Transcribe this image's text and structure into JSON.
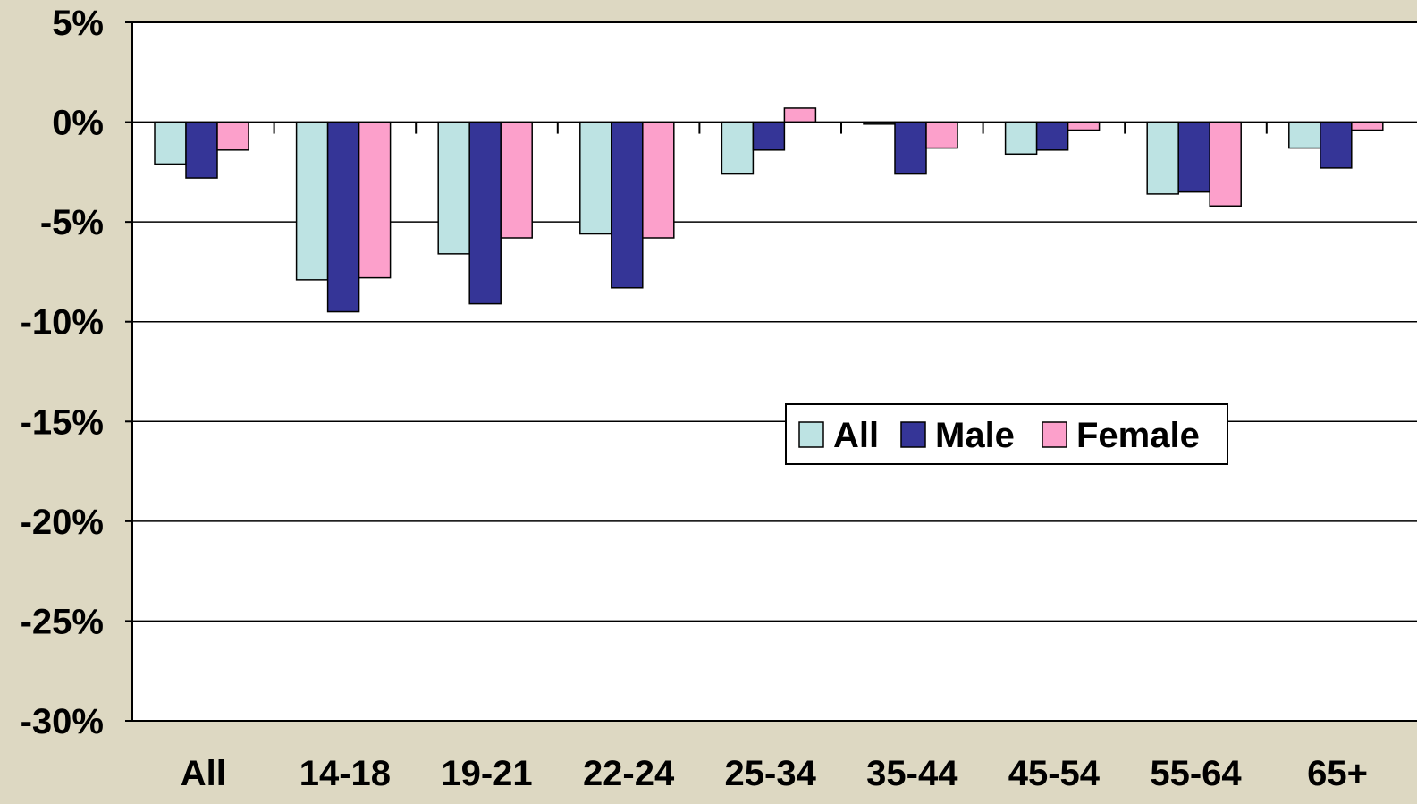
{
  "chart_data": {
    "type": "bar",
    "title": "",
    "xlabel": "",
    "ylabel": "",
    "categories": [
      "All",
      "14-18",
      "19-21",
      "22-24",
      "25-34",
      "35-44",
      "45-54",
      "55-64",
      "65+"
    ],
    "series": [
      {
        "name": "All",
        "color": "#bde3e3",
        "values": [
          -2.1,
          -7.9,
          -6.6,
          -5.6,
          -2.6,
          -0.1,
          -1.6,
          -3.6,
          -1.3
        ]
      },
      {
        "name": "Male",
        "color": "#353597",
        "values": [
          -2.8,
          -9.5,
          -9.1,
          -8.3,
          -1.4,
          -2.6,
          -1.4,
          -3.5,
          -2.3
        ]
      },
      {
        "name": "Female",
        "color": "#fca0cb",
        "values": [
          -1.4,
          -7.8,
          -5.8,
          -5.8,
          0.7,
          -1.3,
          -0.4,
          -4.2,
          -0.4
        ]
      }
    ],
    "ylim": [
      -30,
      5
    ],
    "yticks": [
      "5%",
      "0%",
      "-5%",
      "-10%",
      "-15%",
      "-20%",
      "-25%",
      "-30%"
    ],
    "ytick_values": [
      5,
      0,
      -5,
      -10,
      -15,
      -20,
      -25,
      -30
    ],
    "grid": true,
    "legend_position": "center-right"
  }
}
